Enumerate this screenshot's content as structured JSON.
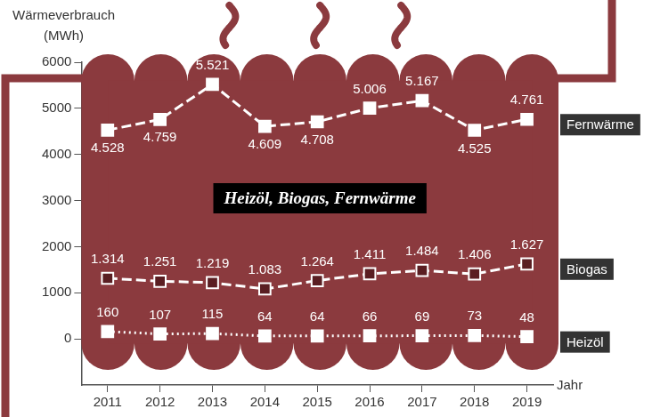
{
  "chart_data": {
    "type": "line",
    "title": "Heizöl, Biogas, Fernwärme",
    "y_label": "Wärmeverbrauch (MWh)",
    "x_label": "Jahr",
    "categories": [
      "2011",
      "2012",
      "2013",
      "2014",
      "2015",
      "2016",
      "2017",
      "2018",
      "2019"
    ],
    "series": [
      {
        "name": "Fernwärme",
        "color": "#ffffff",
        "marker": "square",
        "line_style": "dashed",
        "values": [
          4528,
          4759,
          5521,
          4609,
          4708,
          5006,
          5167,
          4525,
          4761
        ],
        "value_labels": [
          "4.528",
          "4.759",
          "5.521",
          "4.609",
          "4.708",
          "5.006",
          "5.167",
          "4.525",
          "4.761"
        ]
      },
      {
        "name": "Biogas",
        "color": "#5a1e22",
        "marker": "square",
        "line_style": "dashed",
        "values": [
          1314,
          1251,
          1219,
          1083,
          1264,
          1411,
          1484,
          1406,
          1627
        ],
        "value_labels": [
          "1.314",
          "1.251",
          "1.219",
          "1.083",
          "1.264",
          "1.411",
          "1.484",
          "1.406",
          "1.627"
        ]
      },
      {
        "name": "Heizöl",
        "color": "#ffffff",
        "marker": "square",
        "line_style": "dotted",
        "values": [
          160,
          107,
          115,
          64,
          64,
          66,
          69,
          73,
          48
        ]
      }
    ],
    "ylim": [
      -1000,
      6000
    ],
    "yticks": [
      0,
      1000,
      2000,
      3000,
      4000,
      5000,
      6000
    ],
    "grid": false,
    "data_labels": true,
    "legend": "right"
  }
}
